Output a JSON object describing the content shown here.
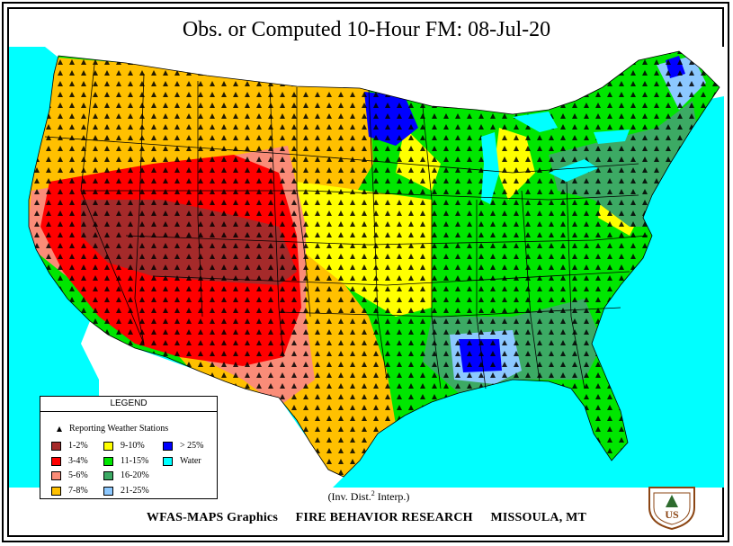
{
  "title": "Obs. or Computed 10-Hour FM:    08-Jul-20",
  "legend": {
    "heading": "LEGEND",
    "stations_label": "Reporting Weather Stations",
    "items": [
      {
        "label": "1-2%",
        "color": "#a52a2a"
      },
      {
        "label": "3-4%",
        "color": "#ff0000"
      },
      {
        "label": "5-6%",
        "color": "#fa8c78"
      },
      {
        "label": "7-8%",
        "color": "#ffc000"
      },
      {
        "label": "9-10%",
        "color": "#ffff00"
      },
      {
        "label": "11-15%",
        "color": "#00e600"
      },
      {
        "label": "16-20%",
        "color": "#3caa64"
      },
      {
        "label": "21-25%",
        "color": "#8cc8ff"
      },
      {
        "label": "> 25%",
        "color": "#0000ff"
      },
      {
        "label": "Water",
        "color": "#00ffff"
      }
    ]
  },
  "interp_label": "(Inv. Dist.",
  "interp_sup": "2",
  "interp_tail": "Interp.)",
  "footer": {
    "graphics": "WFAS-MAPS Graphics",
    "research": "FIRE BEHAVIOR RESEARCH",
    "location": "MISSOULA, MT"
  },
  "logo_text": "US"
}
